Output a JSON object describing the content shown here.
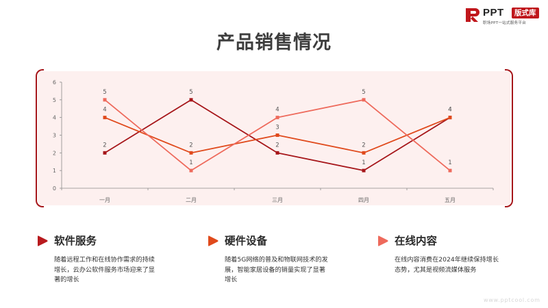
{
  "logo": {
    "brand": "PPT",
    "badge": "版式库",
    "tagline": "职场PPT一站式服务平台"
  },
  "title": "产品销售情况",
  "chart_data": {
    "type": "line",
    "categories": [
      "一月",
      "二月",
      "三月",
      "四月",
      "五月"
    ],
    "ylim": [
      0,
      6
    ],
    "yticks": [
      0,
      1,
      2,
      3,
      4,
      5,
      6
    ],
    "title": "",
    "xlabel": "",
    "ylabel": "",
    "grid": false,
    "legend": "none",
    "series": [
      {
        "values": [
          2,
          5,
          2,
          1,
          4
        ],
        "color": "#a6161a"
      },
      {
        "values": [
          4,
          2,
          3,
          2,
          4
        ],
        "color": "#e04a1c"
      },
      {
        "values": [
          5,
          1,
          4,
          5,
          1
        ],
        "color": "#ee6a5c"
      }
    ]
  },
  "cards": [
    {
      "title": "软件服务",
      "text": "随着远程工作和在线协作需求的持续增长，云办公软件服务市场迎来了显著的增长",
      "icon": "play-arrow-icon",
      "color": "#b81a1e"
    },
    {
      "title": "硬件设备",
      "text": "随着5G网络的普及和物联网技术的发展，智能家居设备的销量实现了显著增长",
      "icon": "play-arrow-icon",
      "color": "#e04a1c"
    },
    {
      "title": "在线内容",
      "text": "在线内容消费在2024年继续保持增长态势，尤其是视频流媒体服务",
      "icon": "play-arrow-icon",
      "color": "#ee6a5c"
    }
  ],
  "watermark": "www.pptcool.com"
}
